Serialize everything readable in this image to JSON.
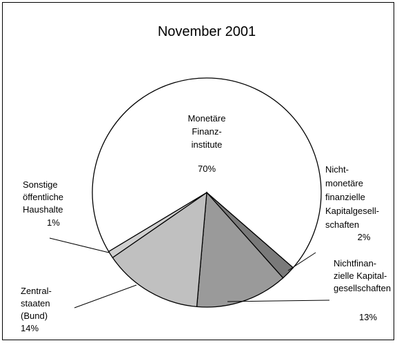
{
  "chart_data": {
    "type": "pie",
    "title": "November 2001",
    "categories": [
      "Monetäre\nFinanz-\ninstitute",
      "Nicht-\nmonetäre\nfinanzielle\nKapitalgesell-\nschaften",
      "Nichtfinan-\nzielle Kapital-\ngesellschaften",
      "Zentral-\nstaaten\n(Bund)",
      "Sonstige\nöffentliche\nHaushalte"
    ],
    "values": [
      70,
      2,
      13,
      14,
      1
    ],
    "value_labels": [
      "70%",
      "2%",
      "13%",
      "14%",
      "1%"
    ],
    "colors": [
      "#ffffff",
      "#7a7a7a",
      "#9a9a9a",
      "#c0c0c0",
      "#cfcfcf"
    ]
  }
}
